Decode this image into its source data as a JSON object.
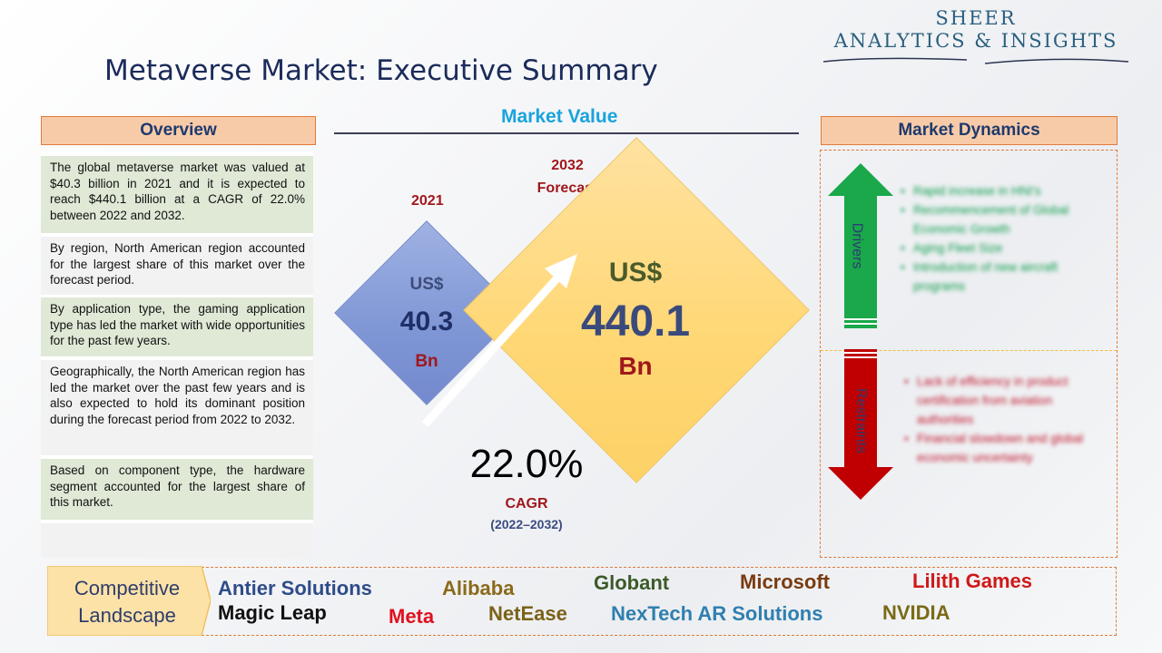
{
  "brand": {
    "line1": "SHEER",
    "line2": "ANALYTICS & INSIGHTS"
  },
  "title": "Metaverse Market: Executive Summary",
  "overview": {
    "header": "Overview",
    "items": [
      "The global metaverse market was valued at $40.3 billion in 2021 and it is expected to reach $440.1 billion at a CAGR of 22.0% between 2022 and 2032.",
      "By region, North American region accounted for the largest share of this market over the forecast period.",
      "By application type, the gaming application type has led the market with wide opportunities for the past few years.",
      "Geographically, the North American region has led the market over the past few years and is also expected to hold its dominant position during the forecast period from 2022 to 2032.",
      "Based on component type, the hardware segment accounted for the largest share of this market."
    ]
  },
  "market_value": {
    "title": "Market Value",
    "y2021": {
      "year": "2021",
      "currency": "US$",
      "value": "40.3",
      "unit": "Bn"
    },
    "y2032": {
      "year": "2032",
      "label": "Forecast",
      "currency": "US$",
      "value": "440.1",
      "unit": "Bn"
    },
    "cagr": {
      "value": "22.0%",
      "label": "CAGR",
      "period": "(2022–2032)"
    }
  },
  "dynamics": {
    "header": "Market Dynamics",
    "drivers_label": "Drivers",
    "restraints_label": "Restraints",
    "drivers": [
      "Rapid increase in HNI's",
      "Recommencement of Global Economic Growth",
      "Aging Fleet Size",
      "Introduction of new aircraft programs"
    ],
    "restraints": [
      "Lack of efficiency in product certification from aviation authorities",
      "Financial slowdown and global economic uncertainty"
    ],
    "colors": {
      "drivers": "#1aa84a",
      "restraints": "#c00000"
    }
  },
  "competitive": {
    "label_line1": "Competitive",
    "label_line2": "Landscape",
    "companies": [
      {
        "name": "Antier Solutions",
        "color": "#2f4c8a"
      },
      {
        "name": "Alibaba",
        "color": "#8a6a1a"
      },
      {
        "name": "Globant",
        "color": "#3b5a2a"
      },
      {
        "name": "Microsoft",
        "color": "#7a3a10"
      },
      {
        "name": "Lilith Games",
        "color": "#d01818"
      },
      {
        "name": "Magic Leap",
        "color": "#111111"
      },
      {
        "name": "Meta",
        "color": "#e01020"
      },
      {
        "name": "NetEase",
        "color": "#7a6218"
      },
      {
        "name": "NexTech AR Solutions",
        "color": "#2f7fb0"
      },
      {
        "name": "NVIDIA",
        "color": "#7a6a18"
      }
    ]
  }
}
